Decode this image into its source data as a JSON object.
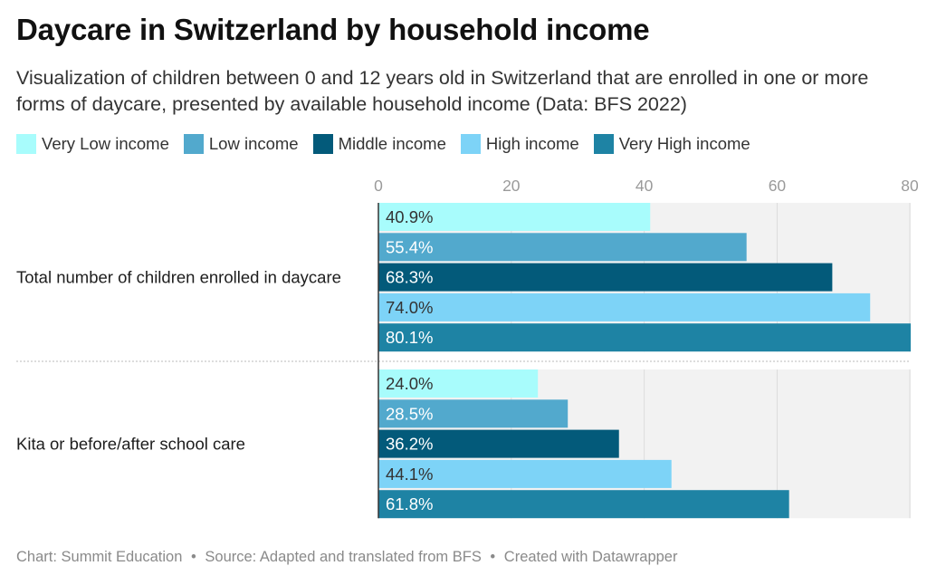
{
  "title": "Daycare in Switzerland by household income",
  "subtitle": "Visualization of children between 0 and 12 years old in Switzerland that are enrolled in one or more forms of daycare, presented by available household income (Data: BFS 2022)",
  "legend": [
    {
      "label": "Very Low income",
      "color": "#a8fcfc"
    },
    {
      "label": "Low income",
      "color": "#52a9cd"
    },
    {
      "label": "Middle income",
      "color": "#035a7a"
    },
    {
      "label": "High income",
      "color": "#7dd3f7"
    },
    {
      "label": "Very High income",
      "color": "#1e83a4"
    }
  ],
  "chart_data": {
    "type": "bar",
    "orientation": "horizontal",
    "categories": [
      "Total number of children enrolled in daycare",
      "Kita or before/after school care"
    ],
    "series": [
      {
        "name": "Very Low income",
        "color": "#a8fcfc",
        "text_color": "#333333",
        "values": [
          40.9,
          24.0
        ]
      },
      {
        "name": "Low income",
        "color": "#52a9cd",
        "text_color": "#ffffff",
        "values": [
          55.4,
          28.5
        ]
      },
      {
        "name": "Middle income",
        "color": "#035a7a",
        "text_color": "#ffffff",
        "values": [
          68.3,
          36.2
        ]
      },
      {
        "name": "High income",
        "color": "#7dd3f7",
        "text_color": "#333333",
        "values": [
          74.0,
          44.1
        ]
      },
      {
        "name": "Very High income",
        "color": "#1e83a4",
        "text_color": "#ffffff",
        "values": [
          80.1,
          61.8
        ]
      }
    ],
    "value_labels": [
      [
        "40.9%",
        "55.4%",
        "68.3%",
        "74.0%",
        "80.1%"
      ],
      [
        "24.0%",
        "28.5%",
        "36.2%",
        "44.1%",
        "61.8%"
      ]
    ],
    "xticks": [
      "0",
      "20",
      "40",
      "60",
      "80"
    ],
    "xlim": [
      0,
      80.1
    ],
    "grid": true,
    "legend_position": "top"
  },
  "footer": {
    "chart_credit": "Chart: Summit Education",
    "source": "Source: Adapted and translated from BFS",
    "created": "Created with Datawrapper",
    "separator": "•"
  }
}
